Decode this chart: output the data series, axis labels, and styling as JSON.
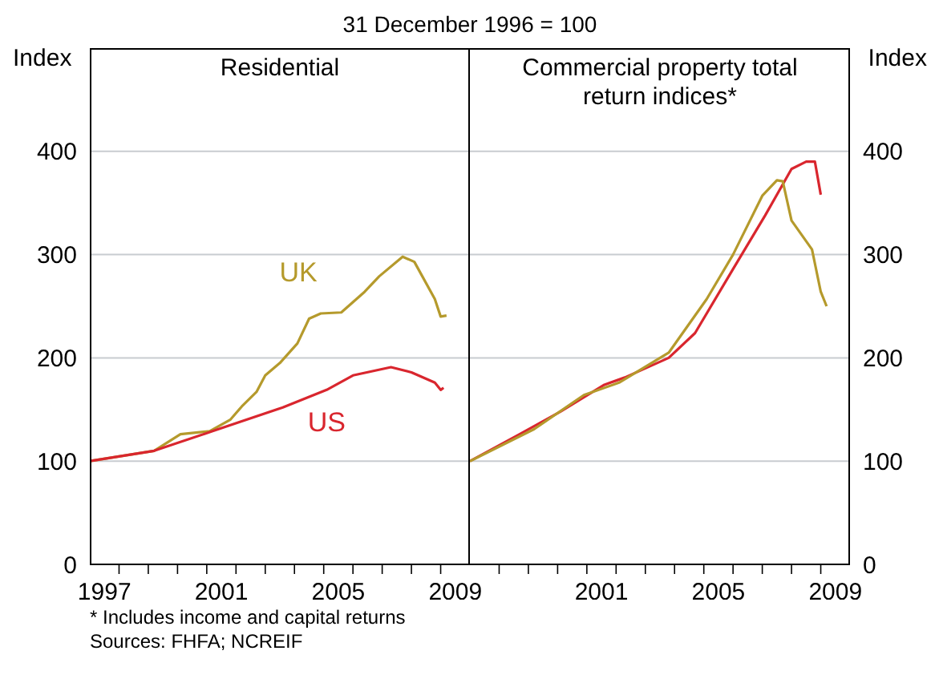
{
  "chart_data": [
    {
      "type": "line",
      "title": "Residential",
      "subtitle": "31 December 1996 = 100",
      "ylabel": "Index",
      "annotations": [
        "*  Includes income and capital returns",
        "Sources: FHFA; NCREIF"
      ],
      "xlim": [
        1997,
        2010
      ],
      "xticks": [
        {
          "value": 1997.5,
          "label": "1997"
        },
        {
          "value": 1998,
          "label": null
        },
        {
          "value": 1999,
          "label": null
        },
        {
          "value": 2000,
          "label": null
        },
        {
          "value": 2001,
          "label": null
        },
        {
          "value": 2001.5,
          "label": "2001"
        },
        {
          "value": 2002,
          "label": null
        },
        {
          "value": 2003,
          "label": null
        },
        {
          "value": 2004,
          "label": null
        },
        {
          "value": 2005,
          "label": null
        },
        {
          "value": 2005.5,
          "label": "2005"
        },
        {
          "value": 2006,
          "label": null
        },
        {
          "value": 2007,
          "label": null
        },
        {
          "value": 2008,
          "label": null
        },
        {
          "value": 2009,
          "label": null
        },
        {
          "value": 2009.5,
          "label": "2009"
        }
      ],
      "ylim": [
        0,
        500
      ],
      "yticks": [
        0,
        100,
        200,
        300,
        400
      ],
      "grid": "y",
      "marker": "none",
      "series": [
        {
          "name": "UK",
          "color": "#b59a2c",
          "x": [
            1997.0,
            1999.2,
            2000.1,
            2001.1,
            2001.8,
            2002.2,
            2002.7,
            2003.0,
            2003.5,
            2004.1,
            2004.5,
            2004.9,
            2005.6,
            2006.4,
            2006.9,
            2007.7,
            2008.1,
            2008.8,
            2009.0,
            2009.2
          ],
          "values": [
            100,
            110,
            126,
            129,
            140,
            153,
            167,
            183,
            195,
            214,
            238,
            243,
            244,
            264,
            279,
            298,
            293,
            257,
            240,
            241
          ]
        },
        {
          "name": "US",
          "color": "#d9262e",
          "x": [
            1997.0,
            1999.2,
            2001.2,
            2003.6,
            2005.1,
            2006.0,
            2007.3,
            2008.0,
            2008.8,
            2009.0,
            2009.1
          ],
          "values": [
            100,
            110,
            129,
            152,
            169,
            183,
            191,
            186,
            176,
            169,
            171
          ]
        }
      ]
    },
    {
      "type": "line",
      "title": "Commercial property total return indices*",
      "ylabel": "Index",
      "xlim": [
        1997,
        2010
      ],
      "xticks": [
        {
          "value": 1998,
          "label": null
        },
        {
          "value": 1999,
          "label": null
        },
        {
          "value": 2000,
          "label": null
        },
        {
          "value": 2001,
          "label": null
        },
        {
          "value": 2001.5,
          "label": "2001"
        },
        {
          "value": 2002,
          "label": null
        },
        {
          "value": 2003,
          "label": null
        },
        {
          "value": 2004,
          "label": null
        },
        {
          "value": 2005,
          "label": null
        },
        {
          "value": 2005.5,
          "label": "2005"
        },
        {
          "value": 2006,
          "label": null
        },
        {
          "value": 2007,
          "label": null
        },
        {
          "value": 2008,
          "label": null
        },
        {
          "value": 2009,
          "label": null
        },
        {
          "value": 2009.5,
          "label": "2009"
        }
      ],
      "ylim": [
        0,
        500
      ],
      "yticks": [
        0,
        100,
        200,
        300,
        400
      ],
      "grid": "y",
      "marker": "none",
      "series": [
        {
          "color": "#d9262e",
          "x": [
            1997.0,
            1998.7,
            2000.1,
            2001.6,
            2002.3,
            2003.8,
            2004.7,
            2006.0,
            2007.1,
            2008.0,
            2008.5,
            2008.8,
            2009.0
          ],
          "values": [
            100,
            126,
            148,
            174,
            181,
            200,
            224,
            286,
            338,
            383,
            390,
            390,
            358
          ]
        },
        {
          "color": "#b59a2c",
          "x": [
            1997.0,
            1999.2,
            2000.9,
            2002.1,
            2003.8,
            2005.1,
            2006.0,
            2007.0,
            2007.5,
            2007.7,
            2008.0,
            2008.7,
            2009.0,
            2009.2
          ],
          "values": [
            100,
            131,
            164,
            176,
            205,
            257,
            300,
            357,
            372,
            371,
            333,
            305,
            264,
            250
          ]
        }
      ]
    }
  ]
}
